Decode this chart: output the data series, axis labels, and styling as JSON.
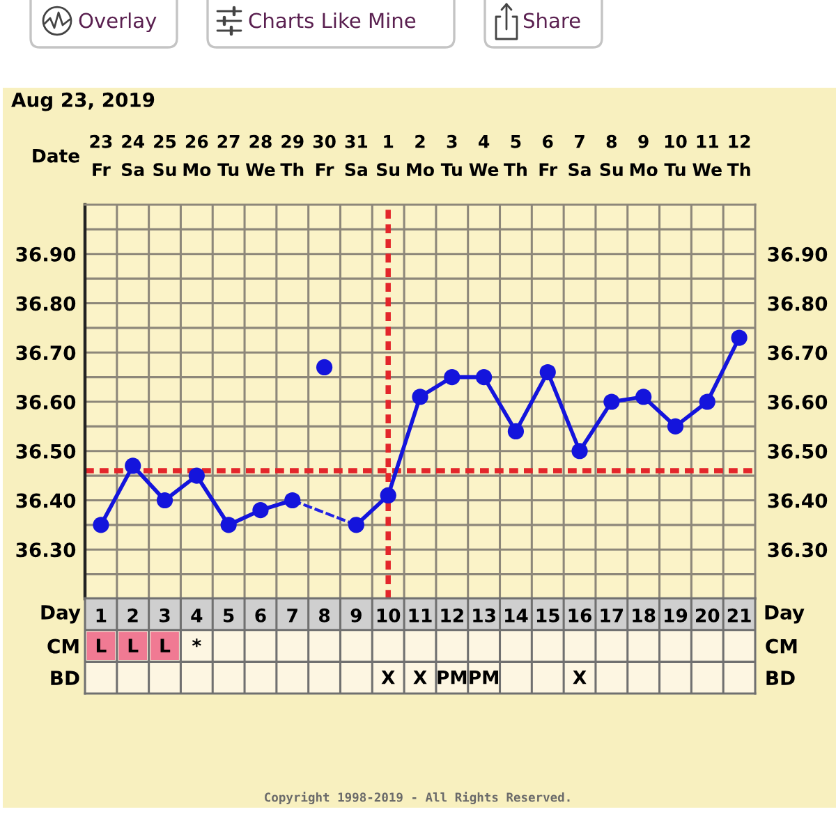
{
  "chart_data": [
    {
      "type": "line",
      "title": "Aug 23, 2019",
      "xlabel": "Date",
      "categories": [
        "23 Fr",
        "24 Sa",
        "25 Su",
        "26 Mo",
        "27 Tu",
        "28 We",
        "29 Th",
        "30 Fr",
        "31 Sa",
        "1 Su",
        "2 Mo",
        "3 Tu",
        "4 We",
        "5 Th",
        "6 Fr",
        "7 Sa",
        "8 Su",
        "9 Mo",
        "10 Tu",
        "11 We",
        "12 Th"
      ],
      "ylim": [
        36.2,
        37.0
      ],
      "yticks": [
        {
          "value": 36.25,
          "label": null
        },
        {
          "value": 36.3,
          "label": "36.30"
        },
        {
          "value": 36.35,
          "label": null
        },
        {
          "value": 36.4,
          "label": "36.40"
        },
        {
          "value": 36.45,
          "label": null
        },
        {
          "value": 36.5,
          "label": "36.50"
        },
        {
          "value": 36.55,
          "label": null
        },
        {
          "value": 36.6,
          "label": "36.60"
        },
        {
          "value": 36.65,
          "label": null
        },
        {
          "value": 36.7,
          "label": "36.70"
        },
        {
          "value": 36.75,
          "label": null
        },
        {
          "value": 36.8,
          "label": "36.80"
        },
        {
          "value": 36.85,
          "label": null
        },
        {
          "value": 36.9,
          "label": "36.90"
        },
        {
          "value": 36.95,
          "label": null
        }
      ],
      "y2lim": [
        36.2,
        37.0
      ],
      "y2ticks": [
        {
          "value": 36.25,
          "label": null
        },
        {
          "value": 36.3,
          "label": "36.30"
        },
        {
          "value": 36.35,
          "label": null
        },
        {
          "value": 36.4,
          "label": "36.40"
        },
        {
          "value": 36.45,
          "label": null
        },
        {
          "value": 36.5,
          "label": "36.50"
        },
        {
          "value": 36.55,
          "label": null
        },
        {
          "value": 36.6,
          "label": "36.60"
        },
        {
          "value": 36.65,
          "label": null
        },
        {
          "value": 36.7,
          "label": "36.70"
        },
        {
          "value": 36.75,
          "label": null
        },
        {
          "value": 36.8,
          "label": "36.80"
        },
        {
          "value": 36.85,
          "label": null
        },
        {
          "value": 36.9,
          "label": "36.90"
        },
        {
          "value": 36.95,
          "label": null
        }
      ],
      "grid": true,
      "marker": "circle",
      "series": [
        {
          "color": "#1414dc",
          "values": [
            36.35,
            36.47,
            36.4,
            36.45,
            36.35,
            36.38,
            36.4,
            null,
            36.35,
            36.41,
            36.61,
            36.65,
            36.65,
            36.54,
            36.66,
            36.5,
            36.6,
            36.61,
            36.55,
            36.6,
            36.73
          ]
        },
        {
          "color": "#2222e4",
          "line_style": "dashed",
          "x": [
            "29 Th",
            "31 Sa"
          ],
          "values": [
            36.4,
            36.35
          ]
        },
        {
          "type": "scatter",
          "color": "#1414dc",
          "x": [
            "30 Fr"
          ],
          "values": [
            36.67
          ]
        }
      ],
      "ref_lines": [
        {
          "axis": "y",
          "value": 36.46,
          "color": "#e3262b",
          "line_style": "dashed"
        },
        {
          "axis": "x",
          "value": "1 Su",
          "color": "#e3262b",
          "line_style": "dashed"
        }
      ],
      "annotations": [
        "Overlay",
        "Charts Like Mine",
        "Share"
      ]
    },
    {
      "type": "heatmap",
      "xlabel": "Day",
      "grid": true,
      "categories": [
        "1",
        "2",
        "3",
        "4",
        "5",
        "6",
        "7",
        "8",
        "9",
        "10",
        "11",
        "12",
        "13",
        "14",
        "15",
        "16",
        "17",
        "18",
        "19",
        "20",
        "21"
      ],
      "y_categories": [
        "CM",
        "BD"
      ],
      "y2_categories": [
        "CM",
        "BD"
      ],
      "cells": [
        [
          null,
          null,
          null,
          null,
          null,
          null,
          null,
          null,
          null,
          null,
          null,
          null,
          null,
          null,
          null,
          null,
          null,
          null,
          null,
          null,
          null
        ],
        [
          null,
          null,
          null,
          null,
          null,
          null,
          null,
          null,
          null,
          null,
          null,
          null,
          null,
          null,
          null,
          null,
          null,
          null,
          null,
          null,
          null
        ]
      ],
      "cell_labels": [
        [
          "L",
          "L",
          "L",
          "*",
          null,
          null,
          null,
          null,
          null,
          null,
          null,
          null,
          null,
          null,
          null,
          null,
          null,
          null,
          null,
          null,
          null
        ],
        [
          null,
          null,
          null,
          null,
          null,
          null,
          null,
          null,
          null,
          "X",
          "X",
          "PM",
          "PM",
          null,
          null,
          "X",
          null,
          null,
          null,
          null,
          null
        ]
      ],
      "colors": [
        [
          "#f07a93",
          "#f07a93",
          "#f07a93",
          null,
          null,
          null,
          null,
          null,
          null,
          null,
          null,
          null,
          null,
          null,
          null,
          null,
          null,
          null,
          null,
          null,
          null
        ],
        [
          null,
          null,
          null,
          null,
          null,
          null,
          null,
          null,
          null,
          null,
          null,
          null,
          null,
          null,
          null,
          null,
          null,
          null,
          null,
          null,
          null
        ]
      ],
      "annotations": [
        "Copyright 1998-2019 - All Rights Reserved."
      ]
    }
  ]
}
